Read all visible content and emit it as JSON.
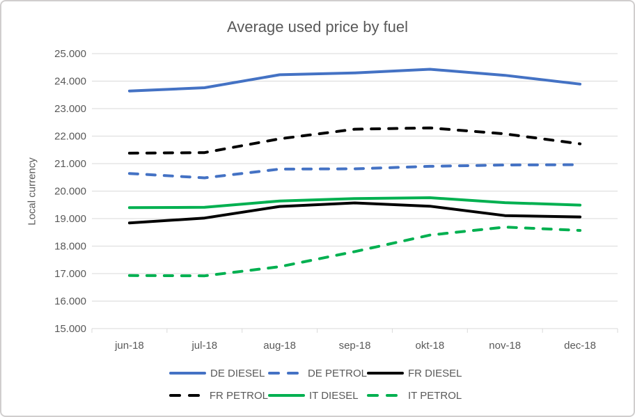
{
  "chart_data": {
    "type": "line",
    "title": "Average used price by fuel",
    "ylabel": "Local currency",
    "xlabel": "",
    "categories": [
      "jun-18",
      "jul-18",
      "aug-18",
      "sep-18",
      "okt-18",
      "nov-18",
      "dec-18"
    ],
    "ylim": [
      15000,
      25000
    ],
    "ytick_step": 1000,
    "ytick_label_format": "dot-thousands",
    "grid": true,
    "legend_position": "bottom",
    "legend_columns": 3,
    "axis_text_color": "#595959",
    "gridline_color": "#D9D9D9",
    "series": [
      {
        "name": "DE DIESEL",
        "color": "#4472C4",
        "style": "solid",
        "values": [
          23640,
          23760,
          24230,
          24300,
          24430,
          24210,
          23890
        ]
      },
      {
        "name": "DE PETROL",
        "color": "#4472C4",
        "style": "dashed",
        "values": [
          20640,
          20480,
          20800,
          20810,
          20900,
          20950,
          20960
        ]
      },
      {
        "name": "FR DIESEL",
        "color": "#000000",
        "style": "solid",
        "values": [
          18840,
          19020,
          19440,
          19570,
          19450,
          19110,
          19060
        ]
      },
      {
        "name": "FR PETROL",
        "color": "#000000",
        "style": "dashed",
        "values": [
          21380,
          21400,
          21900,
          22250,
          22300,
          22080,
          21720
        ]
      },
      {
        "name": "IT DIESEL",
        "color": "#00B050",
        "style": "solid",
        "values": [
          19400,
          19410,
          19640,
          19730,
          19760,
          19580,
          19490
        ]
      },
      {
        "name": "IT PETROL",
        "color": "#00B050",
        "style": "dashed",
        "values": [
          16930,
          16920,
          17250,
          17800,
          18400,
          18690,
          18570
        ]
      }
    ]
  }
}
